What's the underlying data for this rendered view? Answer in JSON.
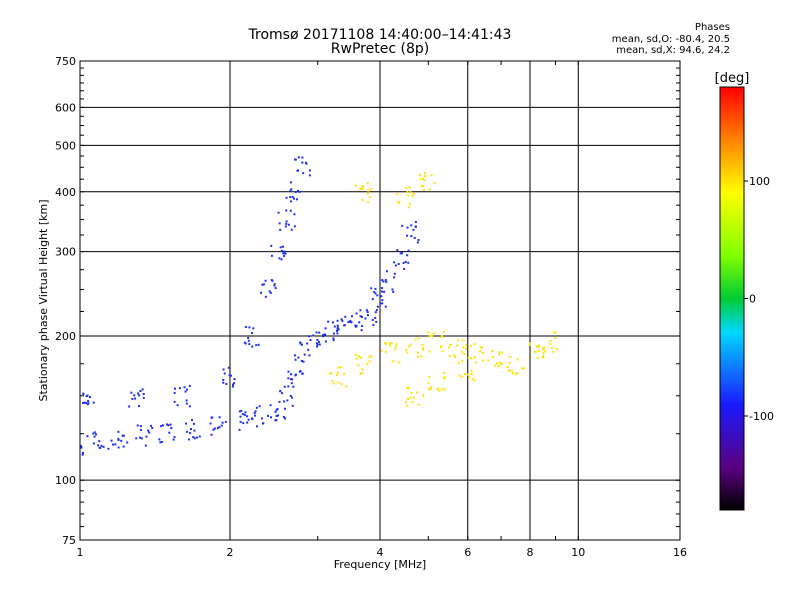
{
  "title": "Tromsø 20171108 14:40:00–14:41:43",
  "subtitle": "RwPretec (8p)",
  "stats": {
    "header": "Phases",
    "line_o": "mean, sd,O: -80.4, 20.5",
    "line_x": "mean, sd,X:  94.6, 24.2"
  },
  "chart_data": {
    "type": "scatter",
    "xlabel": "Frequency [MHz]",
    "ylabel": "Stationary phase Virtual Height [km]",
    "x_scale": "log",
    "y_scale": "log",
    "xlim": [
      1,
      16
    ],
    "ylim": [
      75,
      750
    ],
    "x_ticks": [
      1,
      2,
      4,
      6,
      8,
      10,
      16
    ],
    "x_tick_labels": [
      "1",
      "2",
      "4",
      "6",
      "8",
      "10",
      "16"
    ],
    "x_gridlines": [
      2,
      4,
      6,
      8,
      10
    ],
    "y_ticks": [
      75,
      100,
      200,
      300,
      400,
      500,
      600,
      750
    ],
    "y_tick_labels": [
      "75",
      "100",
      "200",
      "300",
      "400",
      "500",
      "600",
      "750"
    ],
    "y_gridlines": [
      100,
      200,
      300,
      400,
      500,
      600
    ],
    "grid": true,
    "colorbar": {
      "label": "[deg]",
      "min": -180,
      "max": 180,
      "ticks": [
        100,
        0,
        -100
      ],
      "tick_labels": [
        "100",
        "0",
        "-100"
      ]
    },
    "series": [
      {
        "mode": "O",
        "color": "#1e2ff0",
        "points": [
          [
            1.0,
            118
          ],
          [
            1.1,
            120
          ],
          [
            1.2,
            122
          ],
          [
            1.35,
            124
          ],
          [
            1.5,
            126
          ],
          [
            1.7,
            128
          ],
          [
            1.9,
            130
          ],
          [
            2.1,
            133
          ],
          [
            2.3,
            136
          ],
          [
            2.5,
            140
          ],
          [
            2.6,
            150
          ],
          [
            2.7,
            165
          ],
          [
            2.8,
            185
          ],
          [
            3.0,
            200
          ],
          [
            3.2,
            205
          ],
          [
            3.4,
            210
          ],
          [
            3.6,
            215
          ],
          [
            3.8,
            220
          ],
          [
            4.0,
            240
          ],
          [
            4.2,
            260
          ],
          [
            4.4,
            290
          ],
          [
            4.6,
            330
          ],
          [
            1.05,
            150
          ],
          [
            1.3,
            148
          ],
          [
            1.6,
            150
          ],
          [
            2.0,
            165
          ],
          [
            2.2,
            200
          ],
          [
            2.4,
            250
          ],
          [
            2.5,
            300
          ],
          [
            2.6,
            350
          ],
          [
            2.7,
            400
          ],
          [
            2.8,
            450
          ]
        ]
      },
      {
        "mode": "X",
        "color": "#ffe000",
        "points": [
          [
            3.3,
            165
          ],
          [
            3.7,
            175
          ],
          [
            4.2,
            185
          ],
          [
            4.7,
            190
          ],
          [
            5.2,
            195
          ],
          [
            5.7,
            190
          ],
          [
            6.2,
            185
          ],
          [
            6.8,
            180
          ],
          [
            7.5,
            175
          ],
          [
            8.2,
            185
          ],
          [
            8.8,
            195
          ],
          [
            3.7,
            400
          ],
          [
            4.5,
            390
          ],
          [
            5.0,
            420
          ],
          [
            4.7,
            150
          ],
          [
            5.2,
            160
          ],
          [
            6.0,
            170
          ]
        ]
      }
    ]
  }
}
